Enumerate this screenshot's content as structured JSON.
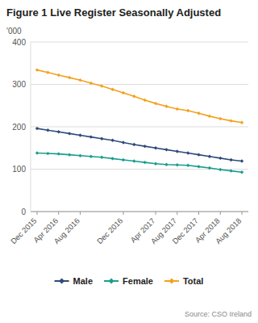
{
  "chart_data": {
    "type": "line",
    "title": "Figure 1 Live Register Seasonally Adjusted",
    "y_label": "'000",
    "annotations": [
      "Source: CSO Ireland"
    ],
    "categories": [
      "Dec 2015",
      null,
      "Apr 2016",
      null,
      "Aug 2016",
      null,
      null,
      null,
      "Dec 2016",
      null,
      null,
      "Apr 2017",
      null,
      "Aug 2017",
      null,
      "Dec 2017",
      null,
      "Apr 2018",
      null,
      "Aug 2018"
    ],
    "series": [
      {
        "name": "Male",
        "color": "#2e4a7a",
        "values": [
          196,
          192,
          188,
          184,
          180,
          176,
          172,
          168,
          163,
          158,
          154,
          150,
          146,
          142,
          138,
          134,
          130,
          126,
          122,
          119
        ]
      },
      {
        "name": "Female",
        "color": "#1a9e8c",
        "values": [
          138,
          137,
          136,
          134,
          132,
          130,
          128,
          125,
          122,
          119,
          116,
          113,
          111,
          110,
          109,
          106,
          103,
          99,
          96,
          93
        ]
      },
      {
        "name": "Total",
        "color": "#f4a11d",
        "values": [
          334,
          328,
          322,
          316,
          310,
          303,
          296,
          288,
          280,
          272,
          263,
          255,
          248,
          242,
          238,
          232,
          225,
          219,
          214,
          210
        ]
      }
    ],
    "ylim": [
      0,
      400
    ],
    "yticks": [
      0,
      100,
      200,
      300,
      400
    ],
    "grid": true,
    "legend": "bottom",
    "marker": "diamond"
  }
}
